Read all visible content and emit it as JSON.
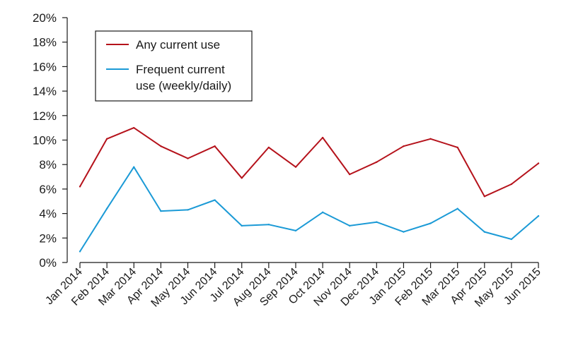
{
  "chart_data": {
    "type": "line",
    "title": "",
    "xlabel": "",
    "ylabel": "",
    "categories": [
      "Jan 2014",
      "Feb 2014",
      "Mar 2014",
      "Apr 2014",
      "May 2014",
      "Jun 2014",
      "Jul 2014",
      "Aug 2014",
      "Sep 2014",
      "Oct 2014",
      "Nov 2014",
      "Dec 2014",
      "Jan 2015",
      "Feb 2015",
      "Mar 2015",
      "Apr 2015",
      "May 2015",
      "Jun 2015"
    ],
    "ylim": [
      0,
      20
    ],
    "yticks": [
      "0%",
      "2%",
      "4%",
      "6%",
      "8%",
      "10%",
      "12%",
      "14%",
      "16%",
      "18%",
      "20%"
    ],
    "grid": false,
    "legend_position": "top-left",
    "series": [
      {
        "name": "Any current use",
        "color": "#b5121b",
        "values": [
          6.2,
          10.1,
          11.0,
          9.5,
          8.5,
          9.5,
          6.9,
          9.4,
          7.8,
          10.2,
          7.2,
          8.2,
          9.5,
          10.1,
          9.4,
          5.4,
          6.4,
          8.1
        ]
      },
      {
        "name": "Frequent current use (weekly/daily)",
        "name_lines": [
          "Frequent current",
          "use (weekly/daily)"
        ],
        "color": "#1b9ad6",
        "values": [
          0.9,
          4.4,
          7.8,
          4.2,
          4.3,
          5.1,
          3.0,
          3.1,
          2.6,
          4.1,
          3.0,
          3.3,
          2.5,
          3.2,
          4.4,
          2.5,
          1.9,
          3.8
        ]
      }
    ]
  }
}
